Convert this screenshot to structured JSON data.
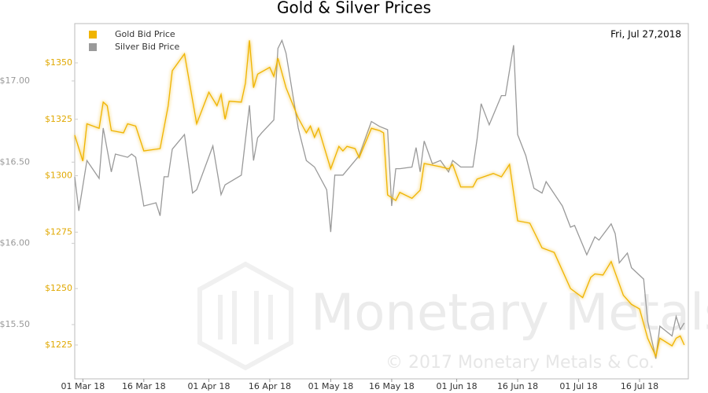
{
  "chart_data": {
    "type": "line",
    "title": "Gold & Silver Prices",
    "annotation": "Fri, Jul 27,2018",
    "watermark": "Monetary Metals",
    "copyright": "© 2017 Monetary Metals & Co.",
    "xlim": [
      "2018-02-27",
      "2018-07-28"
    ],
    "xticks": [
      {
        "value": "2018-03-01",
        "label": "01 Mar 18"
      },
      {
        "value": "2018-03-16",
        "label": "16 Mar 18"
      },
      {
        "value": "2018-04-01",
        "label": "01 Apr 18"
      },
      {
        "value": "2018-04-16",
        "label": "16 Apr 18"
      },
      {
        "value": "2018-05-01",
        "label": "01 May 18"
      },
      {
        "value": "2018-05-16",
        "label": "16 May 18"
      },
      {
        "value": "2018-06-01",
        "label": "01 Jun 18"
      },
      {
        "value": "2018-06-16",
        "label": "16 Jun 18"
      },
      {
        "value": "2018-07-01",
        "label": "01 Jul 18"
      },
      {
        "value": "2018-07-16",
        "label": "16 Jul 18"
      }
    ],
    "ylim": [
      1210,
      1367.4
    ],
    "yticks": [
      {
        "value": 1225,
        "label": "$1225"
      },
      {
        "value": 1250,
        "label": "$1250"
      },
      {
        "value": 1275,
        "label": "$1275"
      },
      {
        "value": 1300,
        "label": "$1300"
      },
      {
        "value": 1325,
        "label": "$1325"
      },
      {
        "value": 1350,
        "label": "$1350"
      }
    ],
    "y2lim": [
      15.166,
      17.353
    ],
    "y2ticks": [
      {
        "value": 15.5,
        "label": "$15.50"
      },
      {
        "value": 16,
        "label": "$16.00"
      },
      {
        "value": 16.5,
        "label": "$16.50"
      },
      {
        "value": 17,
        "label": "$17.00"
      }
    ],
    "legend": "upper left",
    "series": [
      {
        "name": "Gold Bid Price",
        "color": "#f0b400",
        "x": [
          "2018-02-27",
          "2018-03-01",
          "2018-03-02",
          "2018-03-05",
          "2018-03-06",
          "2018-03-07",
          "2018-03-08",
          "2018-03-11",
          "2018-03-12",
          "2018-03-14",
          "2018-03-16",
          "2018-03-20",
          "2018-03-22",
          "2018-03-23",
          "2018-03-26",
          "2018-03-29",
          "2018-04-01",
          "2018-04-03",
          "2018-04-04",
          "2018-04-05",
          "2018-04-06",
          "2018-04-09",
          "2018-04-10",
          "2018-04-11",
          "2018-04-12",
          "2018-04-13",
          "2018-04-16",
          "2018-04-17",
          "2018-04-18",
          "2018-04-20",
          "2018-04-23",
          "2018-04-25",
          "2018-04-26",
          "2018-04-27",
          "2018-04-28",
          "2018-05-01",
          "2018-05-03",
          "2018-05-04",
          "2018-05-05",
          "2018-05-07",
          "2018-05-08",
          "2018-05-11",
          "2018-05-13",
          "2018-05-14",
          "2018-05-15",
          "2018-05-17",
          "2018-05-18",
          "2018-05-21",
          "2018-05-23",
          "2018-05-24",
          "2018-05-28",
          "2018-05-30",
          "2018-05-31",
          "2018-06-02",
          "2018-06-05",
          "2018-06-06",
          "2018-06-10",
          "2018-06-12",
          "2018-06-14",
          "2018-06-16",
          "2018-06-19",
          "2018-06-22",
          "2018-06-25",
          "2018-06-29",
          "2018-07-02",
          "2018-07-04",
          "2018-07-05",
          "2018-07-07",
          "2018-07-09",
          "2018-07-12",
          "2018-07-14",
          "2018-07-16",
          "2018-07-18",
          "2018-07-20",
          "2018-07-21",
          "2018-07-24",
          "2018-07-25",
          "2018-07-26",
          "2018-07-27"
        ],
        "values": [
          1318,
          1306.5,
          1323,
          1321,
          1332.6,
          1331,
          1320,
          1319,
          1323,
          1322,
          1311,
          1312,
          1331,
          1346.5,
          1354,
          1323,
          1337,
          1331,
          1336,
          1325,
          1333,
          1332.6,
          1341,
          1360,
          1339,
          1345,
          1348,
          1344,
          1352,
          1339,
          1325.6,
          1319,
          1322,
          1317,
          1321,
          1303,
          1313,
          1311,
          1313,
          1312,
          1308,
          1321,
          1320,
          1319,
          1291.5,
          1289,
          1292.6,
          1290,
          1293.6,
          1305.4,
          1304,
          1303,
          1305,
          1295,
          1295,
          1298.5,
          1301,
          1299.5,
          1305,
          1280,
          1279,
          1268,
          1266,
          1250,
          1246,
          1255,
          1256.5,
          1256,
          1262,
          1247,
          1243,
          1241,
          1228,
          1220,
          1228,
          1224.6,
          1228,
          1229,
          1225
        ]
      },
      {
        "name": "Silver Bid Price",
        "color": "#9a9a9a",
        "axis": "y2",
        "x": [
          "2018-02-27",
          "2018-02-28",
          "2018-03-02",
          "2018-03-05",
          "2018-03-06",
          "2018-03-08",
          "2018-03-09",
          "2018-03-12",
          "2018-03-13",
          "2018-03-14",
          "2018-03-16",
          "2018-03-19",
          "2018-03-20",
          "2018-03-21",
          "2018-03-22",
          "2018-03-23",
          "2018-03-26",
          "2018-03-28",
          "2018-03-29",
          "2018-04-02",
          "2018-04-04",
          "2018-04-05",
          "2018-04-09",
          "2018-04-11",
          "2018-04-12",
          "2018-04-13",
          "2018-04-14",
          "2018-04-17",
          "2018-04-18",
          "2018-04-19",
          "2018-04-20",
          "2018-04-23",
          "2018-04-25",
          "2018-04-27",
          "2018-04-30",
          "2018-05-01",
          "2018-05-02",
          "2018-05-04",
          "2018-05-08",
          "2018-05-11",
          "2018-05-13",
          "2018-05-15",
          "2018-05-16",
          "2018-05-17",
          "2018-05-18",
          "2018-05-21",
          "2018-05-22",
          "2018-05-23",
          "2018-05-24",
          "2018-05-26",
          "2018-05-28",
          "2018-05-30",
          "2018-05-31",
          "2018-06-02",
          "2018-06-05",
          "2018-06-06",
          "2018-06-07",
          "2018-06-09",
          "2018-06-12",
          "2018-06-13",
          "2018-06-15",
          "2018-06-16",
          "2018-06-18",
          "2018-06-20",
          "2018-06-22",
          "2018-06-23",
          "2018-06-27",
          "2018-06-29",
          "2018-06-30",
          "2018-07-03",
          "2018-07-05",
          "2018-07-06",
          "2018-07-09",
          "2018-07-10",
          "2018-07-11",
          "2018-07-13",
          "2018-07-14",
          "2018-07-17",
          "2018-07-18",
          "2018-07-20",
          "2018-07-21",
          "2018-07-24",
          "2018-07-25",
          "2018-07-26",
          "2018-07-27"
        ],
        "values": [
          16.41,
          16.2,
          16.51,
          16.4,
          16.71,
          16.44,
          16.55,
          16.53,
          16.55,
          16.53,
          16.23,
          16.25,
          16.17,
          16.41,
          16.41,
          16.58,
          16.67,
          16.31,
          16.33,
          16.6,
          16.3,
          16.36,
          16.42,
          16.85,
          16.51,
          16.65,
          16.68,
          16.76,
          17.2,
          17.25,
          17.17,
          16.71,
          16.51,
          16.47,
          16.33,
          16.07,
          16.42,
          16.42,
          16.54,
          16.75,
          16.72,
          16.7,
          16.23,
          16.46,
          16.46,
          16.47,
          16.59,
          16.44,
          16.63,
          16.49,
          16.51,
          16.44,
          16.51,
          16.47,
          16.47,
          16.64,
          16.86,
          16.73,
          16.91,
          16.91,
          17.22,
          16.67,
          16.54,
          16.34,
          16.31,
          16.38,
          16.23,
          16.1,
          16.11,
          15.93,
          16.04,
          16.02,
          16.12,
          16.06,
          15.88,
          15.94,
          15.85,
          15.78,
          15.52,
          15.29,
          15.49,
          15.43,
          15.55,
          15.47,
          15.51
        ]
      }
    ]
  }
}
